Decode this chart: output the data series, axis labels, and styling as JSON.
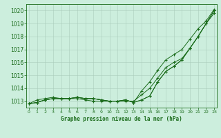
{
  "x": [
    0,
    1,
    2,
    3,
    4,
    5,
    6,
    7,
    8,
    9,
    10,
    11,
    12,
    13,
    14,
    15,
    16,
    17,
    18,
    19,
    20,
    21,
    22,
    23
  ],
  "line1": [
    1012.8,
    1012.9,
    1013.1,
    1013.2,
    1013.2,
    1013.2,
    1013.3,
    1013.2,
    1013.2,
    1013.1,
    1013.0,
    1013.0,
    1013.1,
    1012.9,
    1013.1,
    1013.4,
    1014.5,
    1015.3,
    1015.7,
    1016.2,
    1017.1,
    1018.0,
    1019.0,
    1019.8
  ],
  "line2": [
    1012.8,
    1013.1,
    1013.2,
    1013.3,
    1013.2,
    1013.2,
    1013.2,
    1013.1,
    1013.0,
    1013.0,
    1013.0,
    1013.0,
    1013.0,
    1013.0,
    1013.5,
    1014.0,
    1014.8,
    1015.6,
    1016.0,
    1016.3,
    1017.1,
    1018.0,
    1019.0,
    1020.0
  ],
  "line3": [
    1012.8,
    1012.9,
    1013.1,
    1013.2,
    1013.2,
    1013.2,
    1013.3,
    1013.2,
    1013.2,
    1013.1,
    1013.0,
    1013.0,
    1013.1,
    1012.9,
    1013.1,
    1013.4,
    1014.5,
    1015.3,
    1015.7,
    1016.2,
    1017.1,
    1018.0,
    1019.0,
    1020.0
  ],
  "line4": [
    1012.8,
    1012.9,
    1013.1,
    1013.2,
    1013.2,
    1013.2,
    1013.3,
    1013.2,
    1013.2,
    1013.1,
    1013.0,
    1013.0,
    1013.1,
    1012.9,
    1013.8,
    1014.5,
    1015.4,
    1016.2,
    1016.6,
    1017.0,
    1017.8,
    1018.6,
    1019.2,
    1020.1
  ],
  "line_color": "#1a6b1a",
  "bg_color": "#cceedd",
  "grid_color": "#aaccbb",
  "title": "Graphe pression niveau de la mer (hPa)",
  "ylim": [
    1012.5,
    1020.5
  ],
  "yticks": [
    1013,
    1014,
    1015,
    1016,
    1017,
    1018,
    1019,
    1020
  ],
  "xticks": [
    0,
    1,
    2,
    3,
    4,
    5,
    6,
    7,
    8,
    9,
    10,
    11,
    12,
    13,
    14,
    15,
    16,
    17,
    18,
    19,
    20,
    21,
    22,
    23
  ],
  "xlim": [
    -0.3,
    23.3
  ]
}
